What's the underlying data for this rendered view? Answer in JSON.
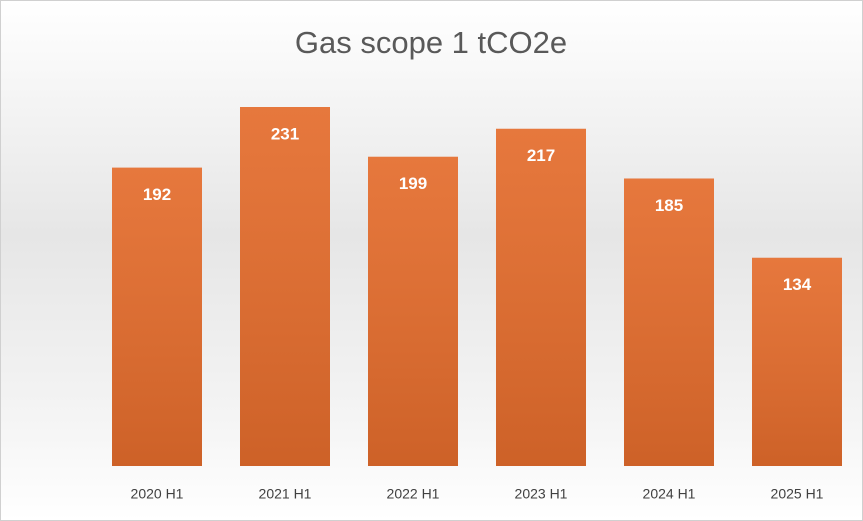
{
  "chart_data": {
    "type": "bar",
    "title": "Gas scope 1 tCO2e",
    "categories": [
      "2020 H1",
      "2021 H1",
      "2022 H1",
      "2023 H1",
      "2024 H1",
      "2025 H1"
    ],
    "values": [
      192,
      231,
      199,
      217,
      185,
      134
    ],
    "color": "#e46c2c"
  }
}
